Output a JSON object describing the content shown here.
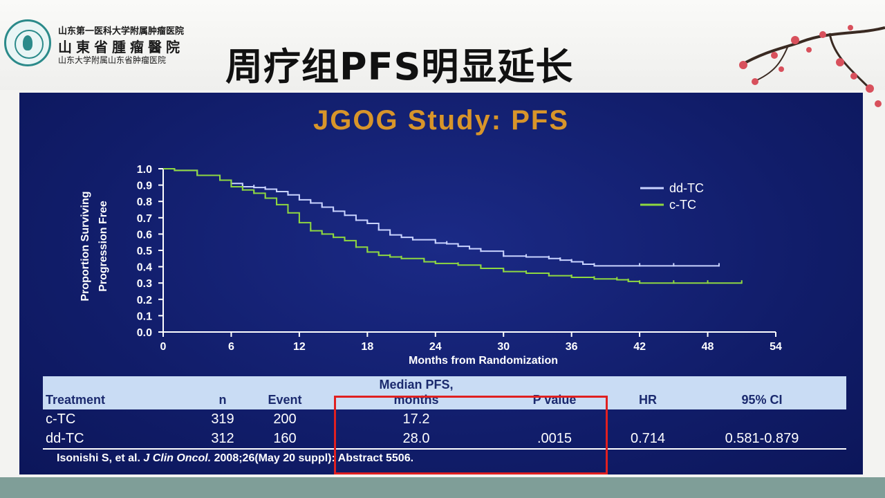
{
  "header": {
    "hospital_line1": "山东第一医科大学附属肿瘤医院",
    "hospital_line2": "山東省腫瘤醫院",
    "hospital_line3": "山东大学附属山东省肿瘤医院",
    "title": "周疗组PFS明显延长"
  },
  "slide": {
    "title": "JGOG Study: PFS",
    "table": {
      "headers": [
        "Treatment",
        "n",
        "Event",
        "Median PFS,",
        "months",
        "P value",
        "HR",
        "95% CI"
      ],
      "rows": [
        [
          "c-TC",
          "319",
          "200",
          "17.2",
          "",
          "",
          ""
        ],
        [
          "dd-TC",
          "312",
          "160",
          "28.0",
          ".0015",
          "0.714",
          "0.581-0.879"
        ]
      ]
    },
    "citation_pre": "Isonishi S, et al.",
    "citation_journal": "J Clin Oncol.",
    "citation_post": "2008;26(May 20 suppl): Abstract 5506."
  },
  "chart_data": {
    "type": "line",
    "title": "JGOG Study: PFS",
    "xlabel": "Months from Randomization",
    "ylabel_line1": "Proportion Surviving",
    "ylabel_line2": "Progression Free",
    "xlim": [
      0,
      54
    ],
    "ylim": [
      0,
      1.0
    ],
    "xticks": [
      "0",
      "6",
      "12",
      "18",
      "24",
      "30",
      "36",
      "42",
      "48",
      "54"
    ],
    "yticks": [
      "0.0",
      "0.1",
      "0.2",
      "0.3",
      "0.4",
      "0.5",
      "0.6",
      "0.7",
      "0.8",
      "0.9",
      "1.0"
    ],
    "legend_position": "top-right",
    "series": [
      {
        "name": "dd-TC",
        "color": "#c9d3ff",
        "points": [
          [
            0,
            1.0
          ],
          [
            1,
            0.99
          ],
          [
            3,
            0.96
          ],
          [
            5,
            0.93
          ],
          [
            6,
            0.91
          ],
          [
            7,
            0.89
          ],
          [
            8,
            0.885
          ],
          [
            9,
            0.875
          ],
          [
            10,
            0.86
          ],
          [
            11,
            0.84
          ],
          [
            12,
            0.81
          ],
          [
            13,
            0.79
          ],
          [
            14,
            0.765
          ],
          [
            15,
            0.74
          ],
          [
            16,
            0.715
          ],
          [
            17,
            0.685
          ],
          [
            18,
            0.665
          ],
          [
            19,
            0.625
          ],
          [
            20,
            0.595
          ],
          [
            21,
            0.58
          ],
          [
            22,
            0.565
          ],
          [
            24,
            0.545
          ],
          [
            25,
            0.54
          ],
          [
            26,
            0.525
          ],
          [
            27,
            0.51
          ],
          [
            28,
            0.495
          ],
          [
            30,
            0.465
          ],
          [
            32,
            0.46
          ],
          [
            34,
            0.45
          ],
          [
            35,
            0.44
          ],
          [
            36,
            0.43
          ],
          [
            37,
            0.415
          ],
          [
            38,
            0.405
          ],
          [
            42,
            0.405
          ],
          [
            45,
            0.405
          ],
          [
            49,
            0.405
          ]
        ]
      },
      {
        "name": "c-TC",
        "color": "#8fd840",
        "points": [
          [
            0,
            1.0
          ],
          [
            1,
            0.99
          ],
          [
            3,
            0.96
          ],
          [
            5,
            0.93
          ],
          [
            6,
            0.89
          ],
          [
            7,
            0.87
          ],
          [
            8,
            0.85
          ],
          [
            9,
            0.82
          ],
          [
            10,
            0.78
          ],
          [
            11,
            0.73
          ],
          [
            12,
            0.67
          ],
          [
            13,
            0.62
          ],
          [
            14,
            0.6
          ],
          [
            15,
            0.58
          ],
          [
            16,
            0.56
          ],
          [
            17,
            0.52
          ],
          [
            18,
            0.49
          ],
          [
            19,
            0.47
          ],
          [
            20,
            0.46
          ],
          [
            21,
            0.45
          ],
          [
            23,
            0.43
          ],
          [
            24,
            0.42
          ],
          [
            26,
            0.41
          ],
          [
            28,
            0.39
          ],
          [
            30,
            0.37
          ],
          [
            32,
            0.36
          ],
          [
            34,
            0.345
          ],
          [
            36,
            0.335
          ],
          [
            38,
            0.325
          ],
          [
            40,
            0.32
          ],
          [
            41,
            0.31
          ],
          [
            42,
            0.3
          ],
          [
            45,
            0.3
          ],
          [
            48,
            0.3
          ],
          [
            51,
            0.3
          ]
        ]
      }
    ]
  }
}
